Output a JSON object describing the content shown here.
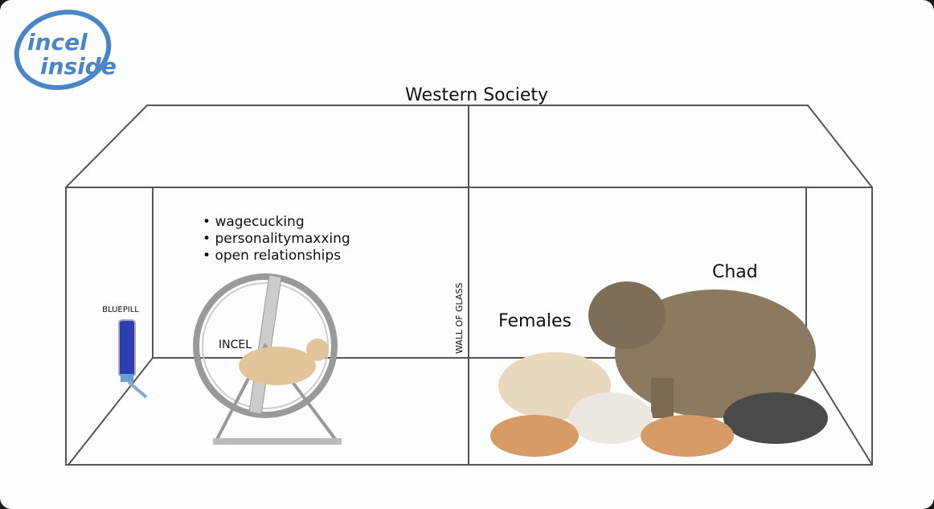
{
  "logo": {
    "line1": "incel",
    "line2": "inside",
    "color": "#4a86c5"
  },
  "title": "Western Society",
  "left_room": {
    "bullets": [
      "wagecucking",
      "personalitymaxxing",
      "open relationships"
    ],
    "bottle_label": "BLUEPILL",
    "wheel_label": "INCEL"
  },
  "divider_label": "WALL OF GLASS",
  "right_room": {
    "females_label": "Females",
    "chad_label": "Chad"
  }
}
